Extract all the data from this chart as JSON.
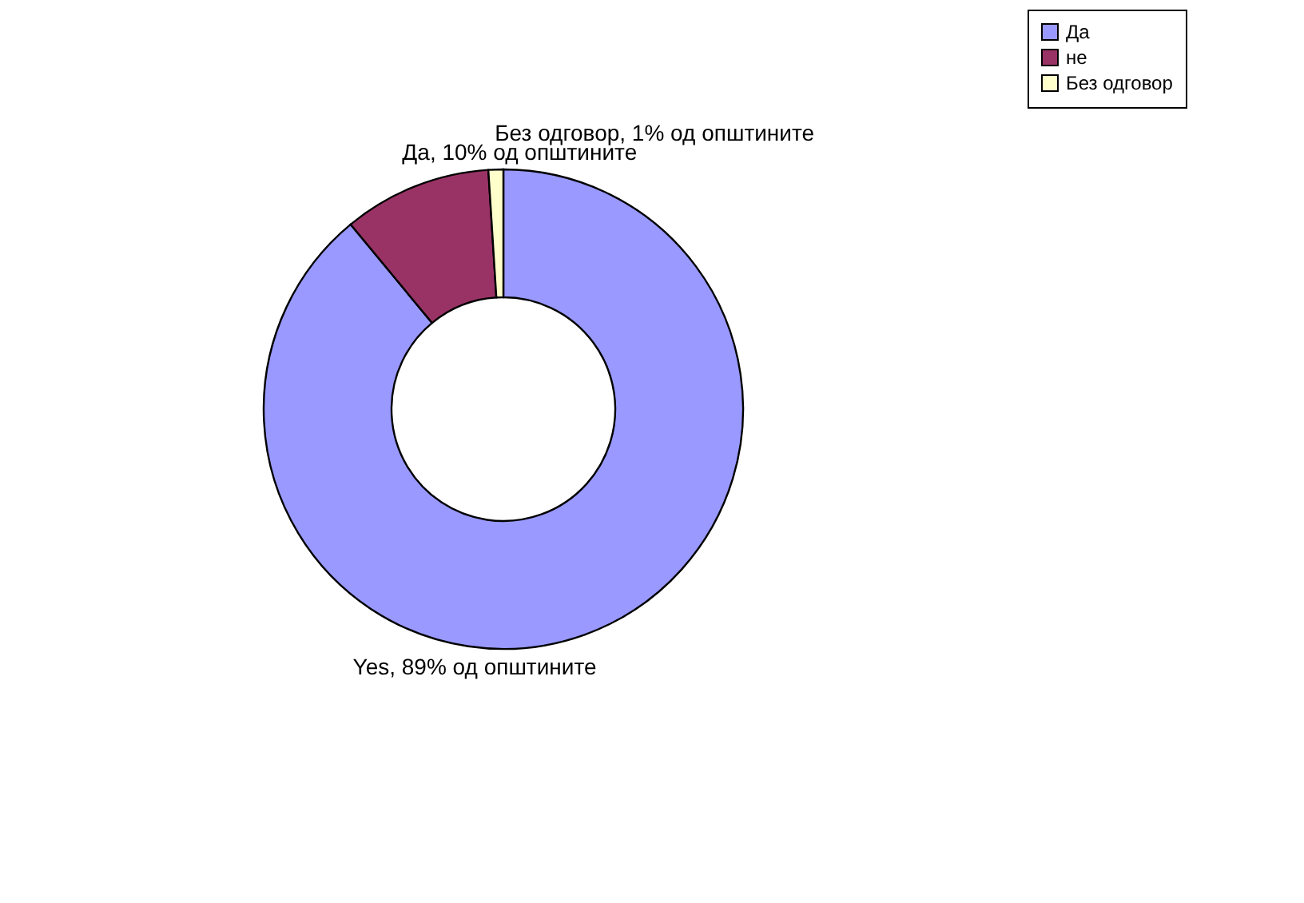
{
  "chart_data": {
    "type": "donut",
    "categories": [
      "Да",
      "не",
      "Без одговор"
    ],
    "values": [
      89,
      10,
      1
    ],
    "colors": [
      "#9999ff",
      "#993366",
      "#ffffcc"
    ],
    "value_labels": [
      "Yes, 89% од општините",
      "Да, 10% од општините",
      "Без одговор, 1% од општините"
    ],
    "legend": "right"
  }
}
